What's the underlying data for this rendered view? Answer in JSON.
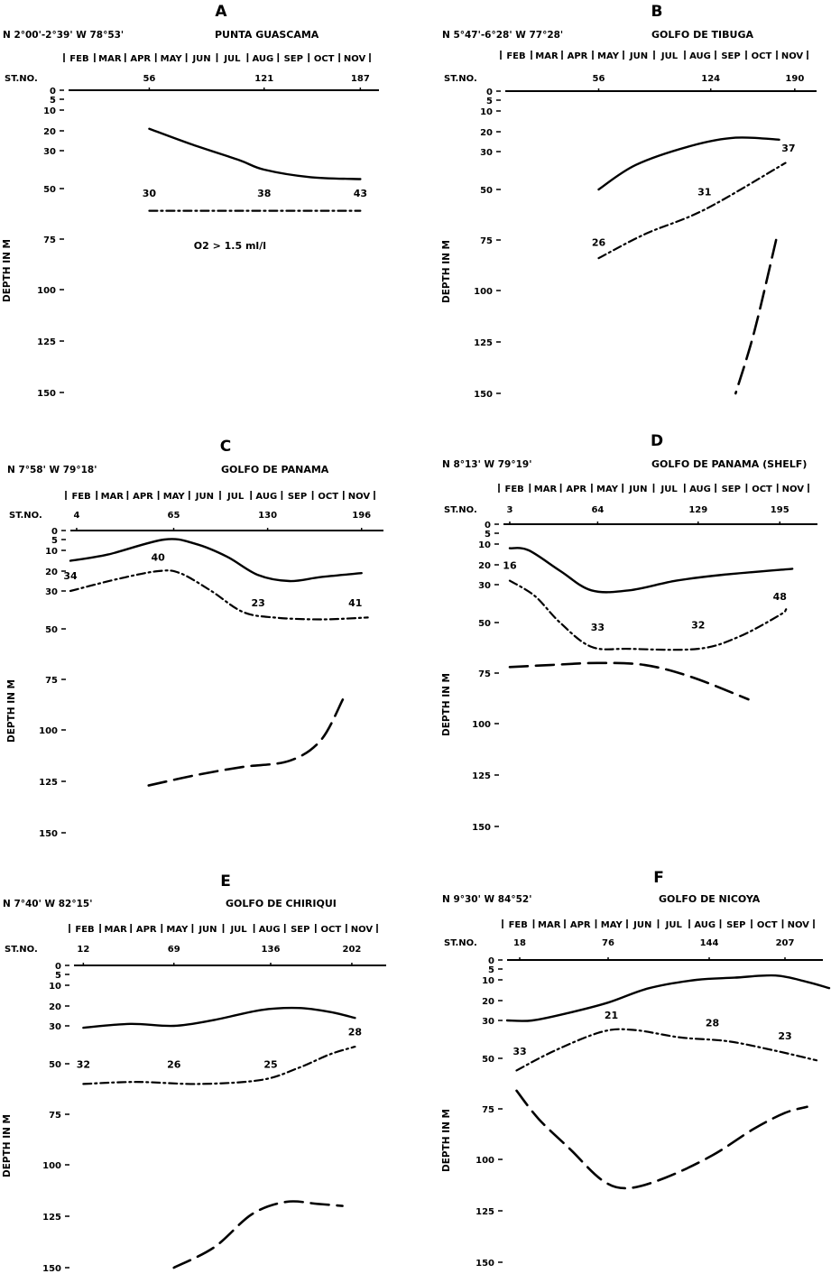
{
  "chart_data": [
    {
      "type": "line",
      "panel_letter": "A",
      "coordinates": "N 2°00'-2°39'  W 78°53'",
      "title": "PUNTA GUASCAMA",
      "months": [
        "FEB",
        "MAR",
        "APR",
        "MAY",
        "JUN",
        "JUL",
        "AUG",
        "SEP",
        "OCT",
        "NOV"
      ],
      "station_label": "ST.NO.",
      "stations": [
        {
          "label": "56",
          "t": 0.26
        },
        {
          "label": "121",
          "t": 0.63
        },
        {
          "label": "187",
          "t": 0.94
        }
      ],
      "ylabel": "DEPTH IN M",
      "yticks": [
        0,
        5,
        10,
        20,
        30,
        50,
        75,
        100,
        125,
        150
      ],
      "ylim": [
        0,
        150
      ],
      "annotation": "O2 > 1.5 ml/l",
      "series": [
        {
          "name": "solid",
          "style": "solid",
          "points": [
            [
              0.26,
              19
            ],
            [
              0.4,
              27
            ],
            [
              0.55,
              35
            ],
            [
              0.63,
              40
            ],
            [
              0.78,
              44
            ],
            [
              0.94,
              45
            ]
          ]
        },
        {
          "name": "dash-dot",
          "style": "dashdot",
          "points": [
            [
              0.26,
              61
            ],
            [
              0.6,
              61
            ],
            [
              0.94,
              61
            ]
          ],
          "labels": [
            {
              "t": 0.26,
              "d": 54,
              "text": "30"
            },
            {
              "t": 0.63,
              "d": 54,
              "text": "38"
            },
            {
              "t": 0.94,
              "d": 54,
              "text": "43"
            }
          ]
        }
      ]
    },
    {
      "type": "line",
      "panel_letter": "B",
      "coordinates": "N 5°47'-6°28'  W 77°28'",
      "title": "GOLFO DE TIBUGA",
      "months": [
        "FEB",
        "MAR",
        "APR",
        "MAY",
        "JUN",
        "JUL",
        "AUG",
        "SEP",
        "OCT",
        "NOV"
      ],
      "station_label": "ST.NO.",
      "stations": [
        {
          "label": "56",
          "t": 0.3
        },
        {
          "label": "124",
          "t": 0.66
        },
        {
          "label": "190",
          "t": 0.93
        }
      ],
      "ylabel": "DEPTH IN M",
      "yticks": [
        0,
        5,
        10,
        20,
        30,
        50,
        75,
        100,
        125,
        150
      ],
      "ylim": [
        0,
        150
      ],
      "series": [
        {
          "name": "solid",
          "style": "solid",
          "points": [
            [
              0.3,
              50
            ],
            [
              0.42,
              37
            ],
            [
              0.6,
              27
            ],
            [
              0.74,
              23
            ],
            [
              0.88,
              24
            ]
          ]
        },
        {
          "name": "dash-dot",
          "style": "dashdot",
          "points": [
            [
              0.3,
              84
            ],
            [
              0.45,
              72
            ],
            [
              0.64,
              60
            ],
            [
              0.9,
              36
            ]
          ],
          "labels": [
            {
              "t": 0.3,
              "d": 78,
              "text": "26"
            },
            {
              "t": 0.64,
              "d": 53,
              "text": "31"
            },
            {
              "t": 0.91,
              "d": 30,
              "text": "37"
            }
          ]
        },
        {
          "name": "dashed",
          "style": "dashed",
          "points": [
            [
              0.87,
              75
            ],
            [
              0.8,
              120
            ],
            [
              0.74,
              150
            ]
          ]
        }
      ]
    },
    {
      "type": "line",
      "panel_letter": "C",
      "coordinates": "N 7°58'  W 79°18'",
      "title": "GOLFO DE PANAMA",
      "months": [
        "FEB",
        "MAR",
        "APR",
        "MAY",
        "JUN",
        "JUL",
        "AUG",
        "SEP",
        "OCT",
        "NOV"
      ],
      "station_label": "ST.NO.",
      "stations": [
        {
          "label": "4",
          "t": 0.02
        },
        {
          "label": "65",
          "t": 0.33
        },
        {
          "label": "130",
          "t": 0.63
        },
        {
          "label": "196",
          "t": 0.93
        }
      ],
      "ylabel": "DEPTH IN M",
      "yticks": [
        0,
        5,
        10,
        20,
        30,
        50,
        75,
        100,
        125,
        150
      ],
      "ylim": [
        0,
        150
      ],
      "series": [
        {
          "name": "solid",
          "style": "solid",
          "points": [
            [
              0.0,
              15
            ],
            [
              0.12,
              12
            ],
            [
              0.3,
              5
            ],
            [
              0.4,
              7
            ],
            [
              0.5,
              13
            ],
            [
              0.6,
              22
            ],
            [
              0.7,
              25
            ],
            [
              0.8,
              23
            ],
            [
              0.93,
              21
            ]
          ]
        },
        {
          "name": "dash-dot",
          "style": "dashdot",
          "points": [
            [
              0.0,
              30
            ],
            [
              0.15,
              24
            ],
            [
              0.28,
              20
            ],
            [
              0.35,
              21
            ],
            [
              0.45,
              30
            ],
            [
              0.55,
              41
            ],
            [
              0.65,
              44
            ],
            [
              0.8,
              45
            ],
            [
              0.95,
              44
            ]
          ],
          "labels": [
            {
              "t": 0.0,
              "d": 24,
              "text": "34"
            },
            {
              "t": 0.28,
              "d": 15,
              "text": "40"
            },
            {
              "t": 0.6,
              "d": 38,
              "text": "23"
            },
            {
              "t": 0.91,
              "d": 38,
              "text": "41"
            }
          ]
        },
        {
          "name": "dashed",
          "style": "dashed",
          "points": [
            [
              0.25,
              127
            ],
            [
              0.4,
              122
            ],
            [
              0.55,
              118
            ],
            [
              0.7,
              115
            ],
            [
              0.8,
              105
            ],
            [
              0.87,
              85
            ]
          ]
        }
      ]
    },
    {
      "type": "line",
      "panel_letter": "D",
      "coordinates": "N 8°13'  W 79°19'",
      "title": "GOLFO DE PANAMA (SHELF)",
      "months": [
        "FEB",
        "MAR",
        "APR",
        "MAY",
        "JUN",
        "JUL",
        "AUG",
        "SEP",
        "OCT",
        "NOV"
      ],
      "station_label": "ST.NO.",
      "stations": [
        {
          "label": "3",
          "t": 0.02
        },
        {
          "label": "64",
          "t": 0.3
        },
        {
          "label": "129",
          "t": 0.62
        },
        {
          "label": "195",
          "t": 0.88
        }
      ],
      "ylabel": "DEPTH IN M",
      "yticks": [
        0,
        5,
        10,
        20,
        30,
        50,
        75,
        100,
        125,
        150
      ],
      "ylim": [
        0,
        150
      ],
      "series": [
        {
          "name": "solid",
          "style": "solid",
          "points": [
            [
              0.02,
              12
            ],
            [
              0.08,
              13
            ],
            [
              0.18,
              23
            ],
            [
              0.28,
              33
            ],
            [
              0.4,
              33
            ],
            [
              0.55,
              28
            ],
            [
              0.7,
              25
            ],
            [
              0.92,
              22
            ]
          ]
        },
        {
          "name": "dash-dot",
          "style": "dashdot",
          "points": [
            [
              0.02,
              28
            ],
            [
              0.1,
              36
            ],
            [
              0.18,
              50
            ],
            [
              0.28,
              62
            ],
            [
              0.4,
              63
            ],
            [
              0.62,
              63
            ],
            [
              0.75,
              57
            ],
            [
              0.88,
              46
            ],
            [
              0.9,
              43
            ]
          ],
          "labels": [
            {
              "t": 0.02,
              "d": 22,
              "text": "16"
            },
            {
              "t": 0.3,
              "d": 54,
              "text": "33"
            },
            {
              "t": 0.62,
              "d": 53,
              "text": "32"
            },
            {
              "t": 0.88,
              "d": 38,
              "text": "48"
            }
          ]
        },
        {
          "name": "dashed",
          "style": "dashed",
          "points": [
            [
              0.02,
              72
            ],
            [
              0.15,
              71
            ],
            [
              0.3,
              70
            ],
            [
              0.45,
              71
            ],
            [
              0.6,
              77
            ],
            [
              0.78,
              88
            ]
          ]
        }
      ]
    },
    {
      "type": "line",
      "panel_letter": "E",
      "coordinates": "N 7°40'  W 82°15'",
      "title": "GOLFO DE CHIRIQUI",
      "months": [
        "FEB",
        "MAR",
        "APR",
        "MAY",
        "JUN",
        "JUL",
        "AUG",
        "SEP",
        "OCT",
        "NOV"
      ],
      "station_label": "ST.NO.",
      "stations": [
        {
          "label": "12",
          "t": 0.03
        },
        {
          "label": "69",
          "t": 0.32
        },
        {
          "label": "136",
          "t": 0.63
        },
        {
          "label": "202",
          "t": 0.89
        }
      ],
      "ylabel": "DEPTH IN M",
      "yticks": [
        0,
        5,
        10,
        20,
        30,
        50,
        75,
        100,
        125,
        150
      ],
      "ylim": [
        0,
        150
      ],
      "series": [
        {
          "name": "solid",
          "style": "solid",
          "points": [
            [
              0.03,
              31
            ],
            [
              0.18,
              29
            ],
            [
              0.32,
              30
            ],
            [
              0.45,
              27
            ],
            [
              0.6,
              22
            ],
            [
              0.72,
              21
            ],
            [
              0.82,
              23
            ],
            [
              0.9,
              26
            ]
          ]
        },
        {
          "name": "dash-dot",
          "style": "dashdot",
          "points": [
            [
              0.03,
              60
            ],
            [
              0.2,
              59
            ],
            [
              0.4,
              60
            ],
            [
              0.6,
              58
            ],
            [
              0.72,
              52
            ],
            [
              0.82,
              45
            ],
            [
              0.9,
              41
            ]
          ],
          "labels": [
            {
              "t": 0.03,
              "d": 52,
              "text": "32"
            },
            {
              "t": 0.32,
              "d": 52,
              "text": "26"
            },
            {
              "t": 0.63,
              "d": 52,
              "text": "25"
            },
            {
              "t": 0.9,
              "d": 35,
              "text": "28"
            }
          ]
        },
        {
          "name": "dashed",
          "style": "dashed",
          "points": [
            [
              0.32,
              150
            ],
            [
              0.45,
              140
            ],
            [
              0.57,
              124
            ],
            [
              0.68,
              118
            ],
            [
              0.78,
              119
            ],
            [
              0.86,
              120
            ]
          ]
        }
      ]
    },
    {
      "type": "line",
      "panel_letter": "F",
      "coordinates": "N 9°30'  W 84°52'",
      "title": "GOLFO DE NICOYA",
      "months": [
        "FEB",
        "MAR",
        "APR",
        "MAY",
        "JUN",
        "JUL",
        "AUG",
        "SEP",
        "OCT",
        "NOV"
      ],
      "station_label": "ST.NO.",
      "stations": [
        {
          "label": "18",
          "t": 0.04
        },
        {
          "label": "76",
          "t": 0.32
        },
        {
          "label": "144",
          "t": 0.64
        },
        {
          "label": "207",
          "t": 0.88
        }
      ],
      "ylabel": "DEPTH IN M",
      "yticks": [
        0,
        5,
        10,
        20,
        30,
        50,
        75,
        100,
        125,
        150
      ],
      "ylim": [
        0,
        150
      ],
      "series": [
        {
          "name": "solid",
          "style": "solid",
          "points": [
            [
              0.0,
              30
            ],
            [
              0.08,
              30
            ],
            [
              0.2,
              26
            ],
            [
              0.32,
              21
            ],
            [
              0.45,
              14
            ],
            [
              0.6,
              10
            ],
            [
              0.72,
              9
            ],
            [
              0.85,
              8
            ],
            [
              0.95,
              11
            ],
            [
              1.02,
              14
            ]
          ]
        },
        {
          "name": "dash-dot",
          "style": "dashdot",
          "points": [
            [
              0.03,
              56
            ],
            [
              0.15,
              46
            ],
            [
              0.3,
              36
            ],
            [
              0.4,
              35
            ],
            [
              0.55,
              39
            ],
            [
              0.7,
              41
            ],
            [
              0.85,
              46
            ],
            [
              0.98,
              51
            ]
          ],
          "labels": [
            {
              "t": 0.04,
              "d": 48,
              "text": "33"
            },
            {
              "t": 0.33,
              "d": 29,
              "text": "21"
            },
            {
              "t": 0.65,
              "d": 33,
              "text": "28"
            },
            {
              "t": 0.88,
              "d": 40,
              "text": "23"
            }
          ]
        },
        {
          "name": "dashed",
          "style": "dashed",
          "points": [
            [
              0.03,
              66
            ],
            [
              0.1,
              80
            ],
            [
              0.2,
              95
            ],
            [
              0.3,
              110
            ],
            [
              0.38,
              114
            ],
            [
              0.5,
              109
            ],
            [
              0.65,
              98
            ],
            [
              0.78,
              85
            ],
            [
              0.88,
              77
            ],
            [
              0.95,
              74
            ]
          ]
        }
      ]
    }
  ]
}
